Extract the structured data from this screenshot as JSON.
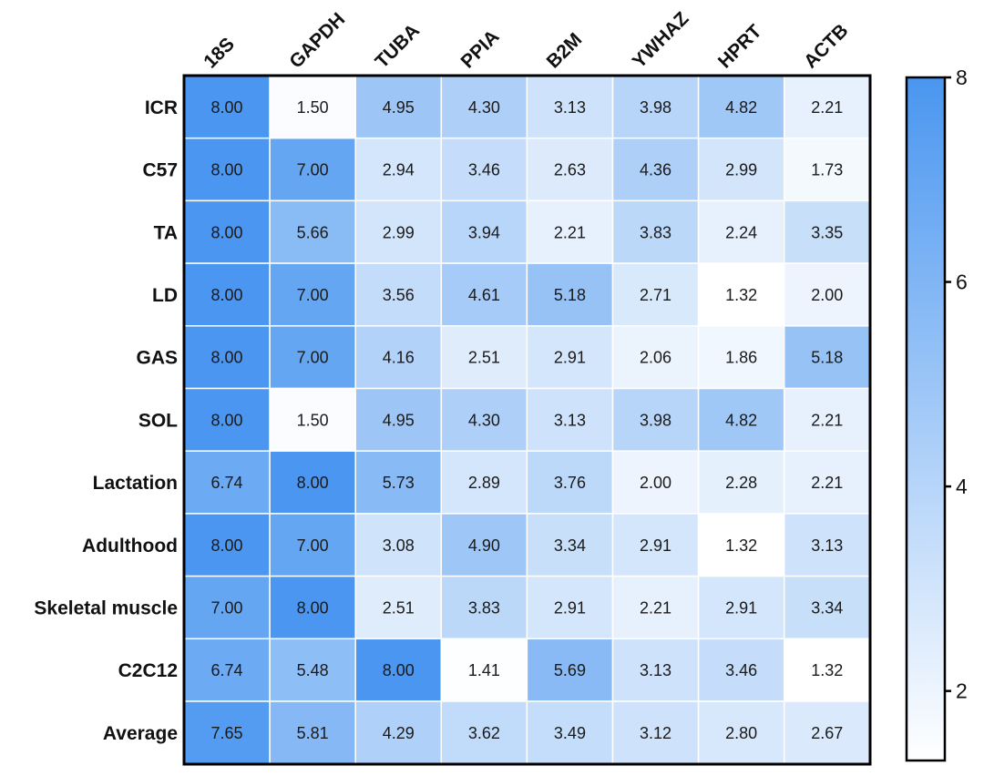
{
  "chart_data": {
    "type": "heatmap",
    "columns": [
      "18S",
      "GAPDH",
      "TUBA",
      "PPIA",
      "B2M",
      "YWHAZ",
      "HPRT",
      "ACTB"
    ],
    "rows": [
      "ICR",
      "C57",
      "TA",
      "LD",
      "GAS",
      "SOL",
      "Lactation",
      "Adulthood",
      "Skeletal muscle",
      "C2C12",
      "Average"
    ],
    "values": [
      [
        8.0,
        1.5,
        4.95,
        4.3,
        3.13,
        3.98,
        4.82,
        2.21
      ],
      [
        8.0,
        7.0,
        2.94,
        3.46,
        2.63,
        4.36,
        2.99,
        1.73
      ],
      [
        8.0,
        5.66,
        2.99,
        3.94,
        2.21,
        3.83,
        2.24,
        3.35
      ],
      [
        8.0,
        7.0,
        3.56,
        4.61,
        5.18,
        2.71,
        1.32,
        2.0
      ],
      [
        8.0,
        7.0,
        4.16,
        2.51,
        2.91,
        2.06,
        1.86,
        5.18
      ],
      [
        8.0,
        1.5,
        4.95,
        4.3,
        3.13,
        3.98,
        4.82,
        2.21
      ],
      [
        6.74,
        8.0,
        5.73,
        2.89,
        3.76,
        2.0,
        2.28,
        2.21
      ],
      [
        8.0,
        7.0,
        3.08,
        4.9,
        3.34,
        2.91,
        1.32,
        3.13
      ],
      [
        7.0,
        8.0,
        2.51,
        3.83,
        2.91,
        2.21,
        2.91,
        3.34
      ],
      [
        6.74,
        5.48,
        8.0,
        1.41,
        5.69,
        3.13,
        3.46,
        1.32
      ],
      [
        7.65,
        5.81,
        4.29,
        3.62,
        3.49,
        3.12,
        2.8,
        2.67
      ]
    ],
    "value_labels": [
      [
        "8.00",
        "1.50",
        "4.95",
        "4.30",
        "3.13",
        "3.98",
        "4.82",
        "2.21"
      ],
      [
        "8.00",
        "7.00",
        "2.94",
        "3.46",
        "2.63",
        "4.36",
        "2.99",
        "1.73"
      ],
      [
        "8.00",
        "5.66",
        "2.99",
        "3.94",
        "2.21",
        "3.83",
        "2.24",
        "3.35"
      ],
      [
        "8.00",
        "7.00",
        "3.56",
        "4.61",
        "5.18",
        "2.71",
        "1.32",
        "2.00"
      ],
      [
        "8.00",
        "7.00",
        "4.16",
        "2.51",
        "2.91",
        "2.06",
        "1.86",
        "5.18"
      ],
      [
        "8.00",
        "1.50",
        "4.95",
        "4.30",
        "3.13",
        "3.98",
        "4.82",
        "2.21"
      ],
      [
        "6.74",
        "8.00",
        "5.73",
        "2.89",
        "3.76",
        "2.00",
        "2.28",
        "2.21"
      ],
      [
        "8.00",
        "7.00",
        "3.08",
        "4.90",
        "3.34",
        "2.91",
        "1.32",
        "3.13"
      ],
      [
        "7.00",
        "8.00",
        "2.51",
        "3.83",
        "2.91",
        "2.21",
        "2.91",
        "3.34"
      ],
      [
        "6.74",
        "5.48",
        "8.00",
        "1.41",
        "5.69",
        "3.13",
        "3.46",
        "1.32"
      ],
      [
        "7.65",
        "5.81",
        "4.29",
        "3.62",
        "3.49",
        "3.12",
        "2.80",
        "2.67"
      ]
    ],
    "colorbar": {
      "min": 1.32,
      "max": 8.0,
      "ticks": [
        2,
        4,
        6,
        8
      ],
      "tick_labels": [
        "2",
        "4",
        "6",
        "8"
      ],
      "color_low": "#ffffff",
      "color_high": "#4a96f0"
    },
    "title": "",
    "xlabel": "",
    "ylabel": "",
    "grid": true,
    "legend_placement": "right"
  }
}
